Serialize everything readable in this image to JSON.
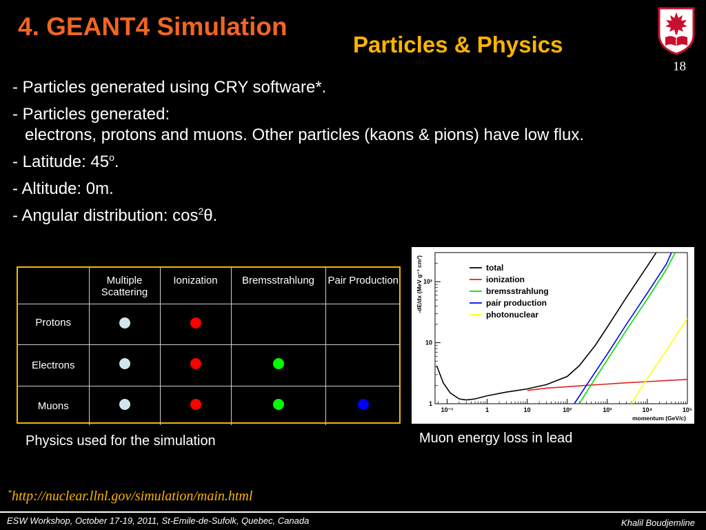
{
  "slide": {
    "title": "4. GEANT4 Simulation",
    "subtitle": "Particles & Physics",
    "page_number": "18",
    "logo_icon": "maple-leaf-book-shield-icon"
  },
  "bullets": {
    "b1": "- Particles generated using CRY software*.",
    "b2": "- Particles generated:",
    "b2_cont": "electrons, protons and muons. Other particles (kaons & pions) have low flux.",
    "b3_pre": "- Latitude: 45",
    "b3_sup": "o",
    "b3_post": ".",
    "b4": "- Altitude: 0m.",
    "b5_pre": "- Angular distribution: cos",
    "b5_sup": "2",
    "b5_post": "θ."
  },
  "physics_table": {
    "headers": [
      "",
      "Multiple Scattering",
      "Ionization",
      "Bremsstrahlung",
      "Pair Production"
    ],
    "rows": [
      {
        "label": "Protons",
        "cells": [
          "#cfe6ee",
          "#ff0000",
          "",
          ""
        ]
      },
      {
        "label": "Electrons",
        "cells": [
          "#cfe6ee",
          "#ff0000",
          "#00ff00",
          ""
        ]
      },
      {
        "label": "Muons",
        "cells": [
          "#cfe6ee",
          "#ff0000",
          "#00ff00",
          "#0000ff"
        ]
      }
    ],
    "caption": "Physics used for the simulation"
  },
  "chart_data": {
    "type": "line",
    "title": "",
    "xlabel": "momentum (GeV/c)",
    "ylabel": "-dE/dx (MeV g⁻¹ cm²)",
    "xscale": "log",
    "yscale": "log",
    "xlim": [
      0.05,
      100000
    ],
    "ylim": [
      1,
      300
    ],
    "x_ticks": [
      "10⁻¹",
      "1",
      "10",
      "10²",
      "10³",
      "10⁴",
      "10⁵"
    ],
    "y_ticks": [
      "1",
      "10",
      "10²"
    ],
    "legend_position": "top-left",
    "series": [
      {
        "name": "total",
        "color": "#000000",
        "points": [
          [
            0.055,
            4.2
          ],
          [
            0.08,
            2.2
          ],
          [
            0.12,
            1.5
          ],
          [
            0.2,
            1.2
          ],
          [
            0.3,
            1.15
          ],
          [
            0.5,
            1.2
          ],
          [
            1,
            1.35
          ],
          [
            3,
            1.55
          ],
          [
            10,
            1.75
          ],
          [
            30,
            2.05
          ],
          [
            100,
            2.8
          ],
          [
            200,
            4.2
          ],
          [
            500,
            9
          ],
          [
            1000,
            18
          ],
          [
            3000,
            55
          ],
          [
            10000,
            180
          ],
          [
            20000,
            360
          ]
        ]
      },
      {
        "name": "ionization",
        "color": "#e02020",
        "points": [
          [
            10,
            1.65
          ],
          [
            30,
            1.8
          ],
          [
            100,
            1.9
          ],
          [
            300,
            2.0
          ],
          [
            1000,
            2.1
          ],
          [
            3000,
            2.2
          ],
          [
            10000,
            2.3
          ],
          [
            30000,
            2.4
          ],
          [
            100000,
            2.5
          ]
        ]
      },
      {
        "name": "bremsstrahlung",
        "color": "#00dd00",
        "points": [
          [
            200,
            1
          ],
          [
            500,
            2.6
          ],
          [
            1000,
            5.2
          ],
          [
            3000,
            16
          ],
          [
            10000,
            52
          ],
          [
            30000,
            160
          ],
          [
            50000,
            300
          ]
        ]
      },
      {
        "name": "pair production",
        "color": "#0000ee",
        "points": [
          [
            150,
            1
          ],
          [
            300,
            2
          ],
          [
            1000,
            6.5
          ],
          [
            3000,
            20
          ],
          [
            10000,
            65
          ],
          [
            30000,
            195
          ],
          [
            40000,
            300
          ]
        ]
      },
      {
        "name": "photonuclear",
        "color": "#ffff00",
        "points": [
          [
            4000,
            1
          ],
          [
            10000,
            2.6
          ],
          [
            30000,
            7.5
          ],
          [
            100000,
            25
          ]
        ]
      }
    ],
    "caption": "Muon energy loss in lead"
  },
  "footnote": {
    "mark": "*",
    "url": "http://nuclear.llnl.gov/simulation/main.html"
  },
  "footer": {
    "left": "ESW Workshop, October 17-19, 2011, St-Emile-de-Sufolk, Quebec, Canada",
    "right": "Khalil Boudjemline"
  }
}
